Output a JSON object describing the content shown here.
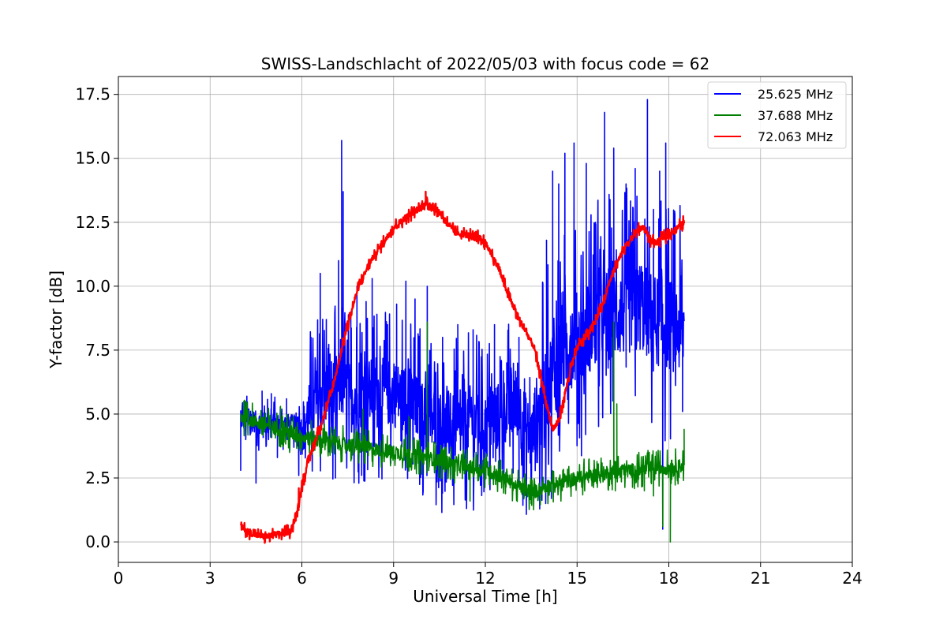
{
  "chart_data": {
    "type": "line",
    "title": "SWISS-Landschlacht of 2022/05/03 with focus code = 62",
    "xlabel": "Universal Time [h]",
    "ylabel": "Y-factor [dB]",
    "xlim": [
      0,
      24
    ],
    "ylim": [
      -0.8,
      18.2
    ],
    "xticks": [
      0,
      3,
      6,
      9,
      12,
      15,
      18,
      21,
      24
    ],
    "xtick_labels": [
      "0",
      "3",
      "6",
      "9",
      "12",
      "15",
      "18",
      "21",
      "24"
    ],
    "yticks": [
      0.0,
      2.5,
      5.0,
      7.5,
      10.0,
      12.5,
      15.0,
      17.5
    ],
    "ytick_labels": [
      "0.0",
      "2.5",
      "5.0",
      "7.5",
      "10.0",
      "12.5",
      "15.0",
      "17.5"
    ],
    "grid": true,
    "legend_position": "top-right",
    "series": [
      {
        "name": "25.625 MHz",
        "color": "#0000ff",
        "x": [
          4.0,
          4.5,
          5.0,
          5.5,
          6.0,
          6.3,
          6.6,
          7.0,
          7.3,
          7.6,
          8.0,
          8.5,
          9.0,
          9.5,
          10.0,
          10.5,
          11.0,
          11.5,
          12.0,
          12.5,
          13.0,
          13.5,
          14.0,
          14.5,
          15.0,
          15.5,
          16.0,
          16.5,
          17.0,
          17.5,
          18.0,
          18.5
        ],
        "y": [
          4.8,
          4.7,
          4.6,
          4.6,
          4.5,
          5.0,
          5.8,
          5.9,
          6.2,
          5.6,
          5.8,
          5.9,
          5.8,
          5.5,
          4.9,
          4.6,
          4.4,
          4.8,
          4.5,
          5.0,
          5.5,
          4.0,
          6.0,
          7.5,
          8.0,
          8.5,
          9.0,
          9.0,
          9.3,
          8.7,
          8.5,
          8.3
        ],
        "spikes": [
          [
            4.0,
            2.8
          ],
          [
            4.2,
            5.7
          ],
          [
            4.5,
            2.3
          ],
          [
            4.7,
            5.9
          ],
          [
            5.0,
            5.8
          ],
          [
            5.2,
            3.3
          ],
          [
            5.5,
            5.6
          ],
          [
            5.9,
            2.6
          ],
          [
            6.3,
            8.0
          ],
          [
            6.6,
            10.5
          ],
          [
            6.8,
            8.7
          ],
          [
            7.1,
            2.5
          ],
          [
            7.2,
            11.0
          ],
          [
            7.3,
            15.7
          ],
          [
            7.35,
            13.7
          ],
          [
            7.6,
            9.0
          ],
          [
            7.8,
            10.0
          ],
          [
            8.1,
            9.4
          ],
          [
            8.3,
            10.3
          ],
          [
            8.8,
            8.5
          ],
          [
            9.1,
            9.3
          ],
          [
            9.4,
            10.2
          ],
          [
            9.7,
            9.5
          ],
          [
            10.1,
            10.0
          ],
          [
            10.6,
            8.0
          ],
          [
            11.1,
            8.5
          ],
          [
            11.6,
            8.3
          ],
          [
            12.3,
            8.5
          ],
          [
            12.7,
            7.0
          ],
          [
            13.1,
            8.0
          ],
          [
            13.5,
            2.3
          ],
          [
            14.0,
            11.8
          ],
          [
            14.2,
            14.5
          ],
          [
            14.4,
            14.0
          ],
          [
            14.6,
            15.2
          ],
          [
            14.9,
            15.6
          ],
          [
            15.3,
            14.8
          ],
          [
            15.6,
            12.5
          ],
          [
            15.9,
            16.8
          ],
          [
            16.2,
            15.4
          ],
          [
            16.6,
            14.0
          ],
          [
            16.9,
            14.6
          ],
          [
            17.3,
            17.3
          ],
          [
            17.5,
            13.0
          ],
          [
            17.7,
            14.5
          ],
          [
            17.9,
            15.6
          ],
          [
            18.1,
            12.0
          ],
          [
            17.8,
            0.5
          ],
          [
            18.4,
            10.4
          ],
          [
            18.45,
            5.1
          ]
        ]
      },
      {
        "name": "37.688 MHz",
        "color": "#008000",
        "x": [
          4.0,
          4.5,
          5.0,
          5.5,
          6.0,
          6.5,
          7.0,
          7.5,
          8.0,
          8.5,
          9.0,
          9.5,
          10.0,
          10.5,
          11.0,
          11.5,
          12.0,
          12.5,
          13.0,
          13.5,
          14.0,
          14.5,
          15.0,
          15.5,
          16.0,
          16.5,
          17.0,
          17.5,
          18.0,
          18.5
        ],
        "y": [
          4.9,
          4.7,
          4.5,
          4.3,
          4.1,
          4.0,
          3.9,
          3.8,
          3.7,
          3.6,
          3.5,
          3.4,
          3.3,
          3.2,
          3.0,
          2.9,
          2.8,
          2.6,
          2.2,
          1.9,
          2.2,
          2.3,
          2.5,
          2.6,
          2.7,
          2.8,
          2.8,
          2.9,
          2.9,
          3.0
        ],
        "spikes": [
          [
            4.1,
            5.5
          ],
          [
            5.3,
            5.3
          ],
          [
            5.6,
            3.5
          ],
          [
            8.0,
            5.2
          ],
          [
            9.5,
            4.9
          ],
          [
            10.1,
            8.6
          ],
          [
            10.15,
            2.8
          ],
          [
            11.5,
            1.6
          ],
          [
            12.5,
            3.2
          ],
          [
            13.5,
            1.5
          ],
          [
            16.2,
            8.6
          ],
          [
            16.25,
            2.0
          ],
          [
            16.3,
            5.4
          ],
          [
            17.2,
            2.0
          ],
          [
            17.5,
            1.8
          ],
          [
            17.8,
            0.6
          ],
          [
            18.05,
            0.0
          ],
          [
            18.1,
            3.2
          ],
          [
            18.5,
            4.4
          ]
        ]
      },
      {
        "name": "72.063 MHz",
        "color": "#ff0000",
        "x": [
          4.0,
          4.4,
          4.8,
          5.2,
          5.6,
          5.8,
          6.0,
          6.3,
          6.6,
          7.0,
          7.4,
          7.8,
          8.2,
          8.6,
          9.0,
          9.4,
          9.8,
          10.0,
          10.2,
          10.5,
          10.8,
          11.0,
          11.4,
          11.8,
          12.0,
          12.4,
          12.8,
          13.2,
          13.6,
          14.0,
          14.2,
          14.4,
          14.6,
          14.8,
          15.0,
          15.4,
          15.8,
          16.2,
          16.6,
          17.0,
          17.2,
          17.4,
          17.6,
          17.8,
          18.0,
          18.2,
          18.5
        ],
        "y": [
          0.6,
          0.3,
          0.2,
          0.3,
          0.4,
          0.9,
          2.2,
          3.5,
          4.5,
          6.0,
          8.0,
          9.8,
          10.9,
          11.6,
          12.3,
          12.7,
          13.0,
          13.2,
          13.2,
          12.9,
          12.4,
          12.1,
          12.0,
          11.9,
          11.7,
          10.8,
          9.5,
          8.5,
          7.6,
          5.4,
          4.4,
          4.7,
          5.8,
          6.8,
          7.6,
          8.2,
          9.2,
          10.7,
          11.6,
          12.2,
          12.3,
          11.8,
          11.7,
          11.9,
          12.0,
          12.2,
          12.5
        ],
        "spikes": [
          [
            10.05,
            13.7
          ],
          [
            5.9,
            2.1
          ]
        ]
      }
    ]
  }
}
